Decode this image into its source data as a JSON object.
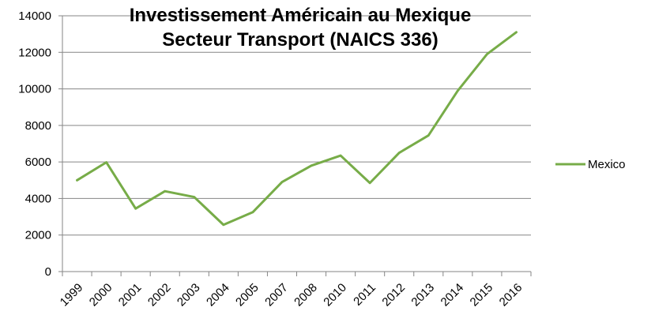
{
  "chart_data": {
    "type": "line",
    "title": "Investissement Américain au Mexique",
    "subtitle": "Secteur Transport (NAICS 336)",
    "xlabel": "",
    "ylabel": "",
    "categories": [
      "1999",
      "2000",
      "2001",
      "2002",
      "2003",
      "2004",
      "2005",
      "2007",
      "2008",
      "2010",
      "2011",
      "2012",
      "2013",
      "2014",
      "2015",
      "2016"
    ],
    "series": [
      {
        "name": "Mexico",
        "color": "#77ac48",
        "values": [
          5000,
          5980,
          3450,
          4400,
          4080,
          2560,
          3250,
          4900,
          5800,
          6350,
          4850,
          6500,
          7450,
          9900,
          11900,
          13100
        ]
      }
    ],
    "ylim": [
      0,
      14000
    ],
    "yticks": [
      "0",
      "2000",
      "4000",
      "6000",
      "8000",
      "10000",
      "12000",
      "14000"
    ],
    "grid": true,
    "legend_position": "right"
  }
}
